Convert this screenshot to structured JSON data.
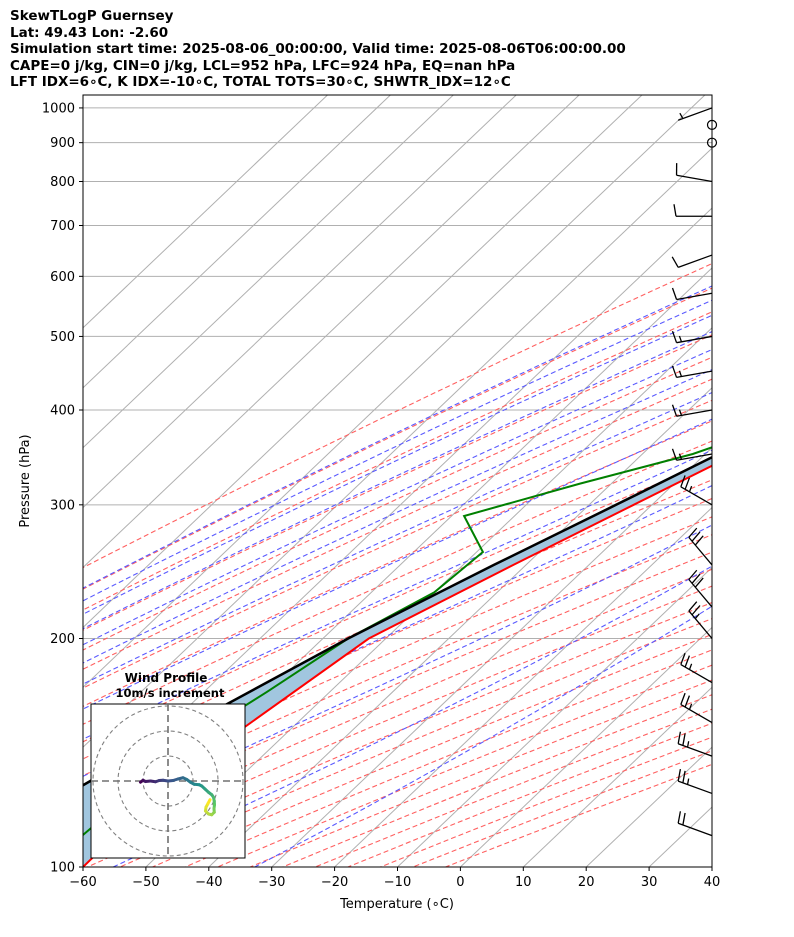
{
  "header": {
    "line1": "SkewTLogP Guernsey",
    "line2": "Lat: 49.43   Lon: -2.60",
    "line3": "Simulation start time: 2025-08-06_00:00:00, Valid time: 2025-08-06T06:00:00.00",
    "line4": "CAPE=0 j/kg, CIN=0 j/kg, LCL=952 hPa, LFC=924 hPa, EQ=nan hPa",
    "line5": "LFT IDX=6∘C, K IDX=-10∘C, TOTAL TOTS=30∘C, SHWTR_IDX=12∘C"
  },
  "colors": {
    "temperature": "#ff0000",
    "dewpoint": "#008000",
    "parcel": "#000000",
    "shade": "#a1c6df",
    "dry_adiabat": "#ff6060",
    "moist_adiabat": "#5a5aff",
    "mixing_ratio": "#9a40c0",
    "isotherm": "#b0b0b0"
  },
  "chart_data": {
    "type": "skew-t log-p",
    "xlabel": "Temperature (∘C)",
    "ylabel": "Pressure (hPa)",
    "xlim": [
      -60,
      40
    ],
    "ylim": [
      1040,
      100
    ],
    "x_ticks": [
      "−60",
      "−50",
      "−40",
      "−30",
      "−20",
      "−10",
      "0",
      "10",
      "20",
      "30",
      "40"
    ],
    "y_ticks": [
      "100",
      "200",
      "300",
      "400",
      "500",
      "600",
      "700",
      "800",
      "900",
      "1000"
    ],
    "y_scale": "log",
    "grid": true,
    "temperature_profile": [
      {
        "p": 1015,
        "t": 17
      },
      {
        "p": 1000,
        "t": 14.5
      },
      {
        "p": 975,
        "t": 12.5
      },
      {
        "p": 950,
        "t": 11.8
      },
      {
        "p": 925,
        "t": 11.8
      },
      {
        "p": 900,
        "t": 12.5
      },
      {
        "p": 875,
        "t": 13
      },
      {
        "p": 850,
        "t": 13.3
      },
      {
        "p": 800,
        "t": 12.8
      },
      {
        "p": 750,
        "t": 10.9
      },
      {
        "p": 700,
        "t": 8.2
      },
      {
        "p": 650,
        "t": 5.5
      },
      {
        "p": 600,
        "t": 1.8
      },
      {
        "p": 550,
        "t": -2.3
      },
      {
        "p": 500,
        "t": -6.9
      },
      {
        "p": 450,
        "t": -12.3
      },
      {
        "p": 400,
        "t": -18.2
      },
      {
        "p": 350,
        "t": -25.2
      },
      {
        "p": 300,
        "t": -32.9
      },
      {
        "p": 250,
        "t": -42
      },
      {
        "p": 200,
        "t": -52.7
      },
      {
        "p": 150,
        "t": -58
      },
      {
        "p": 120,
        "t": -60.2
      },
      {
        "p": 100,
        "t": -60
      }
    ],
    "dewpoint_profile": [
      {
        "p": 1015,
        "t": 13.5
      },
      {
        "p": 1000,
        "t": 11
      },
      {
        "p": 975,
        "t": 8.8
      },
      {
        "p": 950,
        "t": 8.6
      },
      {
        "p": 925,
        "t": 7.5
      },
      {
        "p": 900,
        "t": 4.2
      },
      {
        "p": 850,
        "t": -8.5
      },
      {
        "p": 800,
        "t": -18
      },
      {
        "p": 750,
        "t": -21.5
      },
      {
        "p": 700,
        "t": -16.5
      },
      {
        "p": 650,
        "t": -4
      },
      {
        "p": 600,
        "t": 0.5
      },
      {
        "p": 550,
        "t": -3.5
      },
      {
        "p": 500,
        "t": -8
      },
      {
        "p": 450,
        "t": -13
      },
      {
        "p": 400,
        "t": -19.3
      },
      {
        "p": 350,
        "t": -32
      },
      {
        "p": 320,
        "t": -45
      },
      {
        "p": 290,
        "t": -58
      },
      {
        "p": 260,
        "t": -49
      },
      {
        "p": 230,
        "t": -50
      },
      {
        "p": 200,
        "t": -56
      },
      {
        "p": 170,
        "t": -60
      },
      {
        "p": 145,
        "t": -64.5
      },
      {
        "p": 125,
        "t": -64.5
      },
      {
        "p": 100,
        "t": -66
      }
    ],
    "parcel_profile": [
      {
        "p": 1015,
        "t": 17
      },
      {
        "p": 952,
        "t": 13.1
      },
      {
        "p": 900,
        "t": 10.8
      },
      {
        "p": 850,
        "t": 8.5
      },
      {
        "p": 800,
        "t": 6.4
      },
      {
        "p": 750,
        "t": 4.2
      },
      {
        "p": 700,
        "t": 1.8
      },
      {
        "p": 650,
        "t": -0.9
      },
      {
        "p": 600,
        "t": -3.9
      },
      {
        "p": 550,
        "t": -7.3
      },
      {
        "p": 500,
        "t": -11.3
      },
      {
        "p": 450,
        "t": -15.9
      },
      {
        "p": 400,
        "t": -21.4
      },
      {
        "p": 350,
        "t": -27.9
      },
      {
        "p": 300,
        "t": -35.7
      },
      {
        "p": 250,
        "t": -45.1
      },
      {
        "p": 200,
        "t": -56
      },
      {
        "p": 150,
        "t": -68
      },
      {
        "p": 120,
        "t": -76
      },
      {
        "p": 100,
        "t": -82
      }
    ],
    "wind_barbs": [
      {
        "p": 1000,
        "speed_kt": 5,
        "dir_deg": 250
      },
      {
        "p": 950,
        "speed_kt": 0,
        "dir_deg": 0
      },
      {
        "p": 900,
        "speed_kt": 0,
        "dir_deg": 0
      },
      {
        "p": 800,
        "speed_kt": 10,
        "dir_deg": 280
      },
      {
        "p": 720,
        "speed_kt": 10,
        "dir_deg": 270
      },
      {
        "p": 640,
        "speed_kt": 10,
        "dir_deg": 250
      },
      {
        "p": 570,
        "speed_kt": 10,
        "dir_deg": 260
      },
      {
        "p": 500,
        "speed_kt": 15,
        "dir_deg": 260
      },
      {
        "p": 450,
        "speed_kt": 15,
        "dir_deg": 260
      },
      {
        "p": 400,
        "speed_kt": 15,
        "dir_deg": 260
      },
      {
        "p": 350,
        "speed_kt": 15,
        "dir_deg": 260
      },
      {
        "p": 300,
        "speed_kt": 25,
        "dir_deg": 300
      },
      {
        "p": 250,
        "speed_kt": 30,
        "dir_deg": 320
      },
      {
        "p": 220,
        "speed_kt": 30,
        "dir_deg": 320
      },
      {
        "p": 200,
        "speed_kt": 25,
        "dir_deg": 320
      },
      {
        "p": 175,
        "speed_kt": 25,
        "dir_deg": 300
      },
      {
        "p": 155,
        "speed_kt": 25,
        "dir_deg": 300
      },
      {
        "p": 140,
        "speed_kt": 25,
        "dir_deg": 290
      },
      {
        "p": 125,
        "speed_kt": 25,
        "dir_deg": 290
      },
      {
        "p": 110,
        "speed_kt": 20,
        "dir_deg": 290
      }
    ],
    "hodograph": {
      "title": "Wind Profile",
      "subtitle": "10m/s increment",
      "rings": 3,
      "points": [
        {
          "u": -11,
          "v": -0.5
        },
        {
          "u": -10,
          "v": 0.3
        },
        {
          "u": -9,
          "v": -0.2
        },
        {
          "u": -7,
          "v": 0
        },
        {
          "u": -5,
          "v": -0.3
        },
        {
          "u": -3.5,
          "v": 0.2
        },
        {
          "u": -2,
          "v": 0.3
        },
        {
          "u": 0,
          "v": 0
        },
        {
          "u": 2,
          "v": 0.2
        },
        {
          "u": 4,
          "v": 0.8
        },
        {
          "u": 6,
          "v": 1.3
        },
        {
          "u": 7.5,
          "v": 0.6
        },
        {
          "u": 9,
          "v": -0.5
        },
        {
          "u": 10.5,
          "v": -1.3
        },
        {
          "u": 12.5,
          "v": -1.5
        },
        {
          "u": 13.5,
          "v": -2
        },
        {
          "u": 14.8,
          "v": -3.2
        },
        {
          "u": 16.2,
          "v": -4.5
        },
        {
          "u": 17.5,
          "v": -5.5
        },
        {
          "u": 18.2,
          "v": -6.5
        },
        {
          "u": 18.5,
          "v": -8
        },
        {
          "u": 18.6,
          "v": -9.5
        },
        {
          "u": 18.4,
          "v": -11
        },
        {
          "u": 18.5,
          "v": -12.5
        },
        {
          "u": 17.5,
          "v": -13.5
        },
        {
          "u": 16.2,
          "v": -13.2
        },
        {
          "u": 15,
          "v": -12
        },
        {
          "u": 15.2,
          "v": -10.5
        },
        {
          "u": 16,
          "v": -9
        },
        {
          "u": 16.8,
          "v": -7.5
        }
      ]
    }
  }
}
